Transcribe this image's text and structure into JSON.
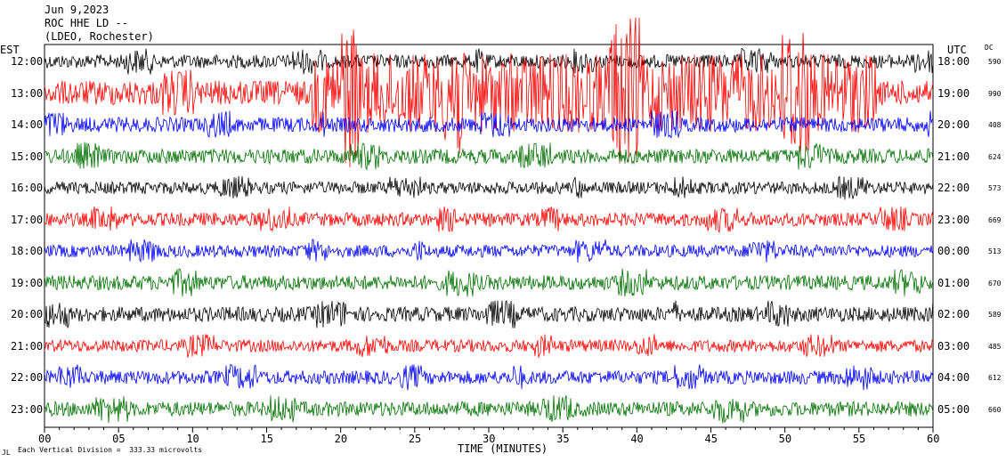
{
  "header": {
    "date": "Jun 9,2023",
    "station": "ROC HHE LD --",
    "network": "(LDEO, Rochester)"
  },
  "axes": {
    "left_tz": "EST",
    "right_tz": "UTC",
    "dc_header": "DC",
    "xlabel": "TIME (MINUTES)",
    "footer": "Each Vertical Division =  333.33 microvolts",
    "footer_mark": "JL"
  },
  "chart_data": {
    "type": "line",
    "title": "Jun 9,2023 ROC HHE LD -- (LDEO, Rochester)",
    "xlabel": "TIME (MINUTES)",
    "xlim": [
      0,
      60
    ],
    "x_ticks": [
      "00",
      "05",
      "10",
      "15",
      "20",
      "25",
      "30",
      "35",
      "40",
      "45",
      "50",
      "55",
      "60"
    ],
    "color_cycle": [
      "#000000",
      "#ff0000",
      "#0000ff",
      "#007000"
    ],
    "rows": [
      {
        "est": "12:00",
        "utc": "18:00",
        "dc": "590",
        "color": "#000000",
        "amp": 0.55
      },
      {
        "est": "13:00",
        "utc": "19:00",
        "dc": "990",
        "color": "#ff0000",
        "amp": 1.0
      },
      {
        "est": "14:00",
        "utc": "20:00",
        "dc": "408",
        "color": "#0000ff",
        "amp": 0.6
      },
      {
        "est": "15:00",
        "utc": "21:00",
        "dc": "624",
        "color": "#007000",
        "amp": 0.6
      },
      {
        "est": "16:00",
        "utc": "22:00",
        "dc": "573",
        "color": "#000000",
        "amp": 0.5
      },
      {
        "est": "17:00",
        "utc": "23:00",
        "dc": "669",
        "color": "#ff0000",
        "amp": 0.55
      },
      {
        "est": "18:00",
        "utc": "00:00",
        "dc": "513",
        "color": "#0000ff",
        "amp": 0.5
      },
      {
        "est": "19:00",
        "utc": "01:00",
        "dc": "670",
        "color": "#007000",
        "amp": 0.6
      },
      {
        "est": "20:00",
        "utc": "02:00",
        "dc": "589",
        "color": "#000000",
        "amp": 0.6
      },
      {
        "est": "21:00",
        "utc": "03:00",
        "dc": "485",
        "color": "#ff0000",
        "amp": 0.5
      },
      {
        "est": "22:00",
        "utc": "04:00",
        "dc": "612",
        "color": "#0000ff",
        "amp": 0.55
      },
      {
        "est": "23:00",
        "utc": "05:00",
        "dc": "660",
        "color": "#007000",
        "amp": 0.6
      }
    ]
  }
}
